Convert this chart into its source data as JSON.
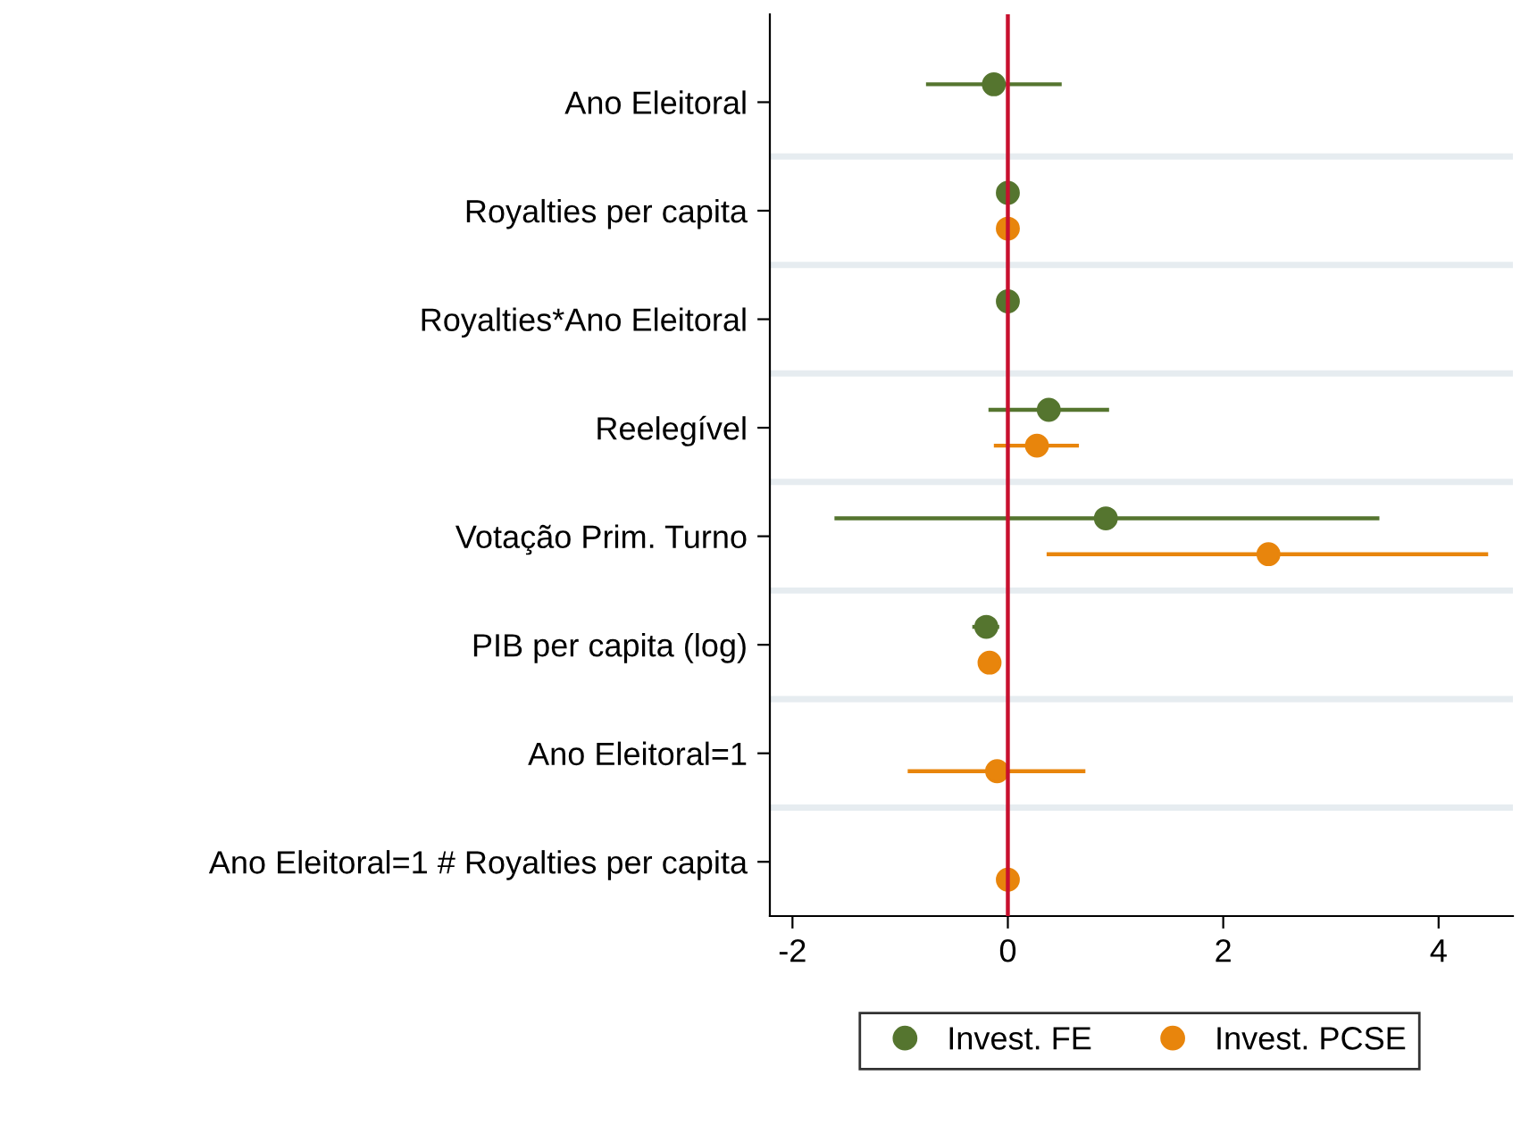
{
  "chart_data": {
    "type": "scatter",
    "orientation": "horizontal",
    "categories": [
      "Ano Eleitoral",
      "Royalties per capita",
      "Royalties*Ano Eleitoral",
      "Reelegível",
      "Votação Prim. Turno",
      "PIB per capita (log)",
      "Ano Eleitoral=1",
      "Ano Eleitoral=1 # Royalties per capita"
    ],
    "series": [
      {
        "name": "Invest. FE",
        "color": "#55752f",
        "values": [
          -0.13,
          0,
          0,
          0.38,
          0.91,
          -0.2,
          null,
          null
        ],
        "errors": [
          [
            -0.76,
            0.5
          ],
          null,
          null,
          [
            -0.18,
            0.94
          ],
          [
            -1.61,
            3.45
          ],
          [
            -0.33,
            -0.08
          ],
          null,
          null
        ]
      },
      {
        "name": "Invest. PCSE",
        "color": "#e8850c",
        "values": [
          null,
          0,
          null,
          0.27,
          2.42,
          -0.17,
          -0.1,
          0
        ],
        "errors": [
          null,
          null,
          null,
          [
            -0.13,
            0.66
          ],
          [
            0.36,
            4.46
          ],
          null,
          [
            -0.93,
            0.72
          ],
          null
        ]
      }
    ],
    "xlim": [
      -2.21,
      4.69
    ],
    "xticks": [
      -2,
      0,
      2,
      4
    ],
    "ref_lines": [
      {
        "axis": "x",
        "value": 0,
        "color": "#c8102e"
      }
    ],
    "grid": "y",
    "legend": "bottom",
    "marker": "circle"
  }
}
